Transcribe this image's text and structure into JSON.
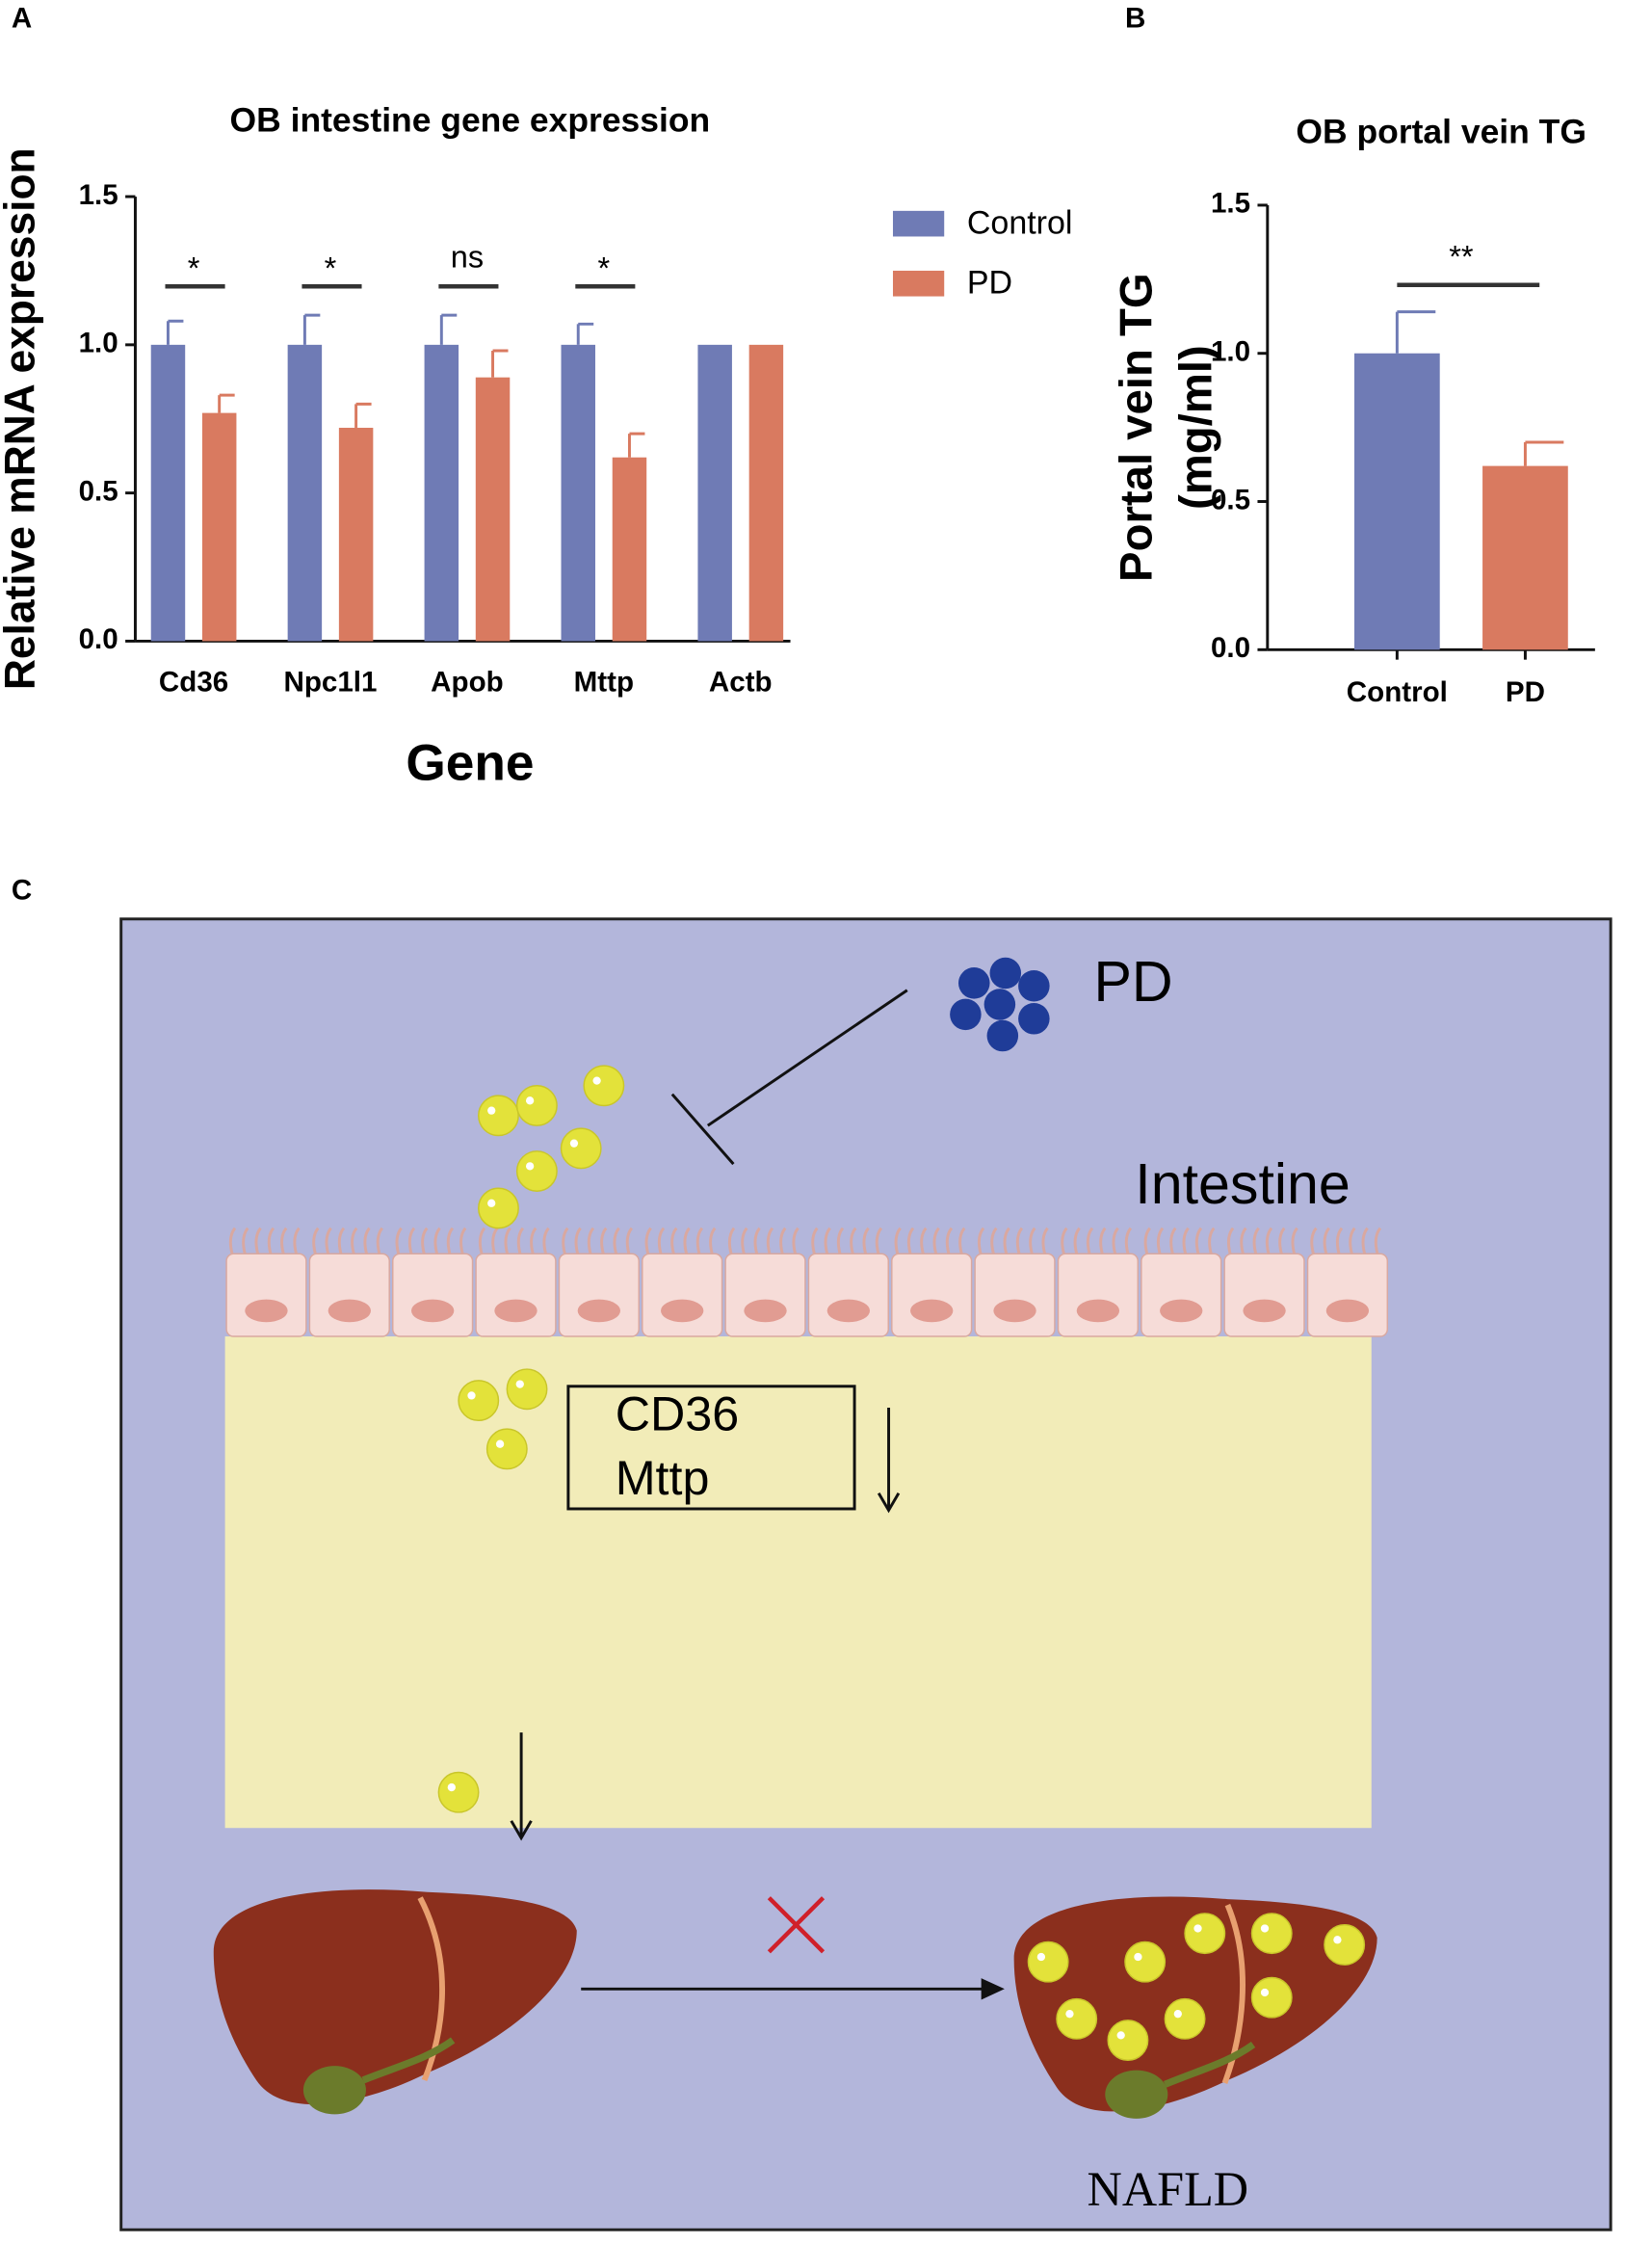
{
  "chart_data": [
    {
      "type": "bar",
      "panel": "A",
      "title": "OB intestine gene expression",
      "x_label": "Gene",
      "y_label": "Relative mRNA expression",
      "categories": [
        "Cd36",
        "Npc1l1",
        "Apob",
        "Mttp",
        "Actb"
      ],
      "series": [
        {
          "name": "Control",
          "color": "#6f7bb5",
          "values": [
            1,
            1,
            1,
            1,
            1
          ],
          "errors": [
            0.08,
            0.1,
            0.1,
            0.07,
            0
          ]
        },
        {
          "name": "PD",
          "color": "#d97a60",
          "values": [
            0.77,
            0.72,
            0.89,
            0.62,
            1
          ],
          "errors": [
            0.06,
            0.08,
            0.09,
            0.08,
            0
          ]
        }
      ],
      "annotations": [
        "*",
        "*",
        "ns",
        "*",
        null
      ],
      "ylim": [
        0,
        1.5
      ],
      "yticks": [
        {
          "value": 0,
          "label": "0.0"
        },
        {
          "value": 0.5,
          "label": "0.5"
        },
        {
          "value": 1,
          "label": "1.0"
        },
        {
          "value": 1.5,
          "label": "1.5"
        }
      ],
      "legend": "right"
    },
    {
      "type": "bar",
      "panel": "B",
      "title": "OB portal vein TG",
      "y_label": [
        "Portal vein TG",
        "(mg/ml)"
      ],
      "categories": [
        "Control",
        "PD"
      ],
      "values": [
        1.0,
        0.62
      ],
      "errors": [
        0.14,
        0.08
      ],
      "colors": [
        "#6f7bb5",
        "#d97a60"
      ],
      "annotation": "**",
      "ylim": [
        0,
        1.5
      ],
      "yticks": [
        {
          "value": 0,
          "label": "0.0"
        },
        {
          "value": 0.5,
          "label": "0.5"
        },
        {
          "value": 1,
          "label": "1.0"
        },
        {
          "value": 1.5,
          "label": "1.5"
        }
      ]
    }
  ],
  "diagram": {
    "panel": "C",
    "agent": "PD",
    "tissue": "Intestine",
    "genes": [
      "CD36",
      "Mttp"
    ],
    "outcome": "NAFLD"
  }
}
